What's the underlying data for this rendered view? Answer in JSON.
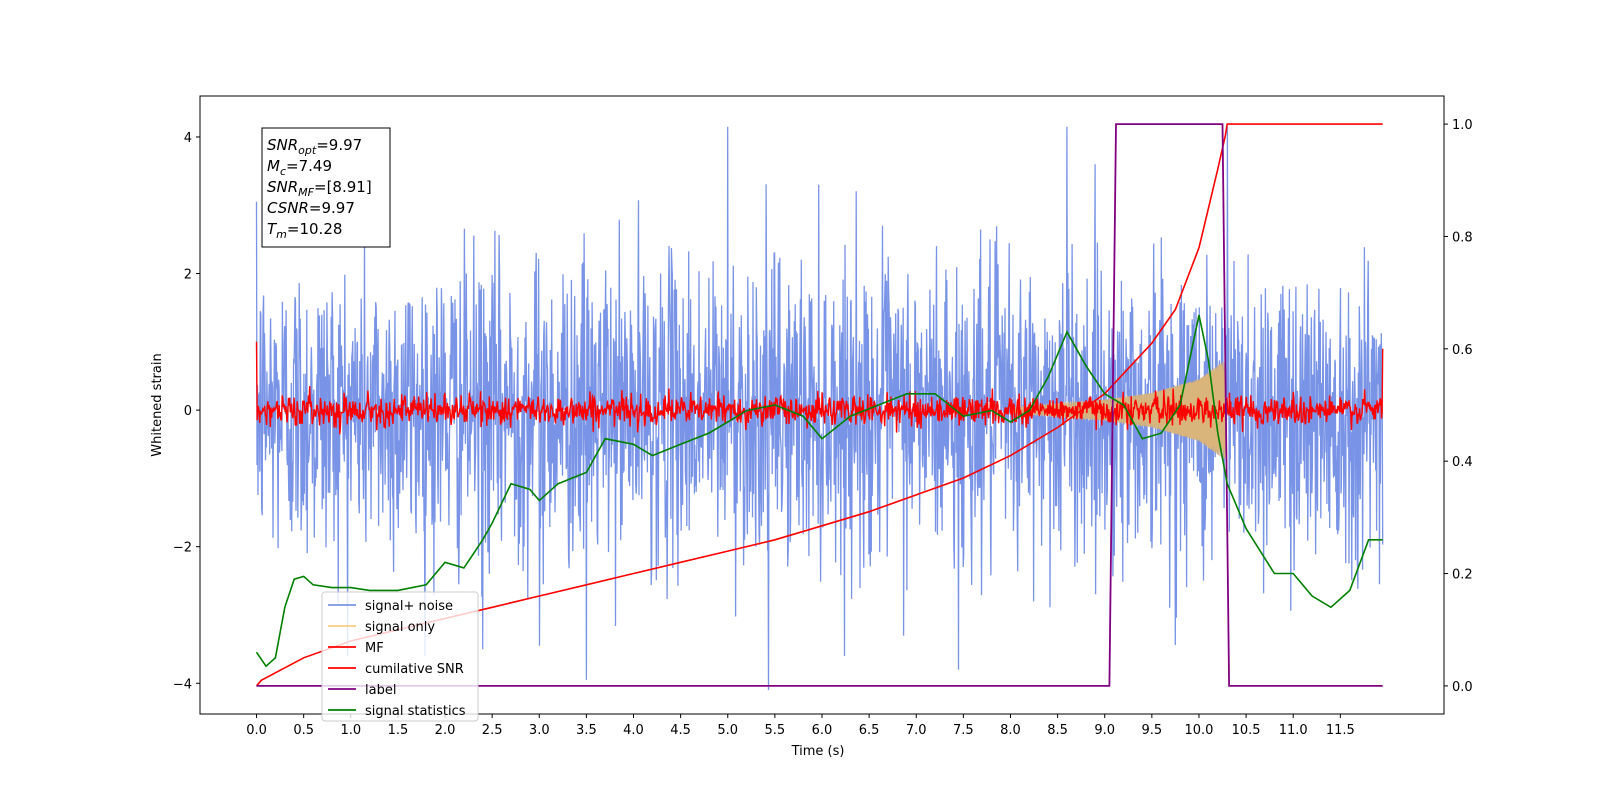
{
  "chart_data": {
    "type": "line",
    "xlabel": "Time (s)",
    "ylabel": "Whitened strain",
    "xlim": [
      -0.6,
      12.6
    ],
    "ylim": [
      -4.45,
      4.6
    ],
    "ylim_right": [
      -0.05,
      1.05
    ],
    "x_ticks": [
      "0.0",
      "0.5",
      "1.0",
      "1.5",
      "2.0",
      "2.5",
      "3.0",
      "3.5",
      "4.0",
      "4.5",
      "5.0",
      "5.5",
      "6.0",
      "6.5",
      "7.0",
      "7.5",
      "8.0",
      "8.5",
      "9.0",
      "9.5",
      "10.0",
      "10.5",
      "11.0",
      "11.5"
    ],
    "y_ticks_left": [
      "4",
      "2",
      "0",
      "−2",
      "−4"
    ],
    "y_ticks_right": [
      "1.0",
      "0.8",
      "0.6",
      "0.4",
      "0.2",
      "0.0"
    ],
    "annotation": [
      {
        "base": "SNR",
        "sub": "opt",
        "value": "=9.97"
      },
      {
        "base": "M",
        "sub": "c",
        "value": "=7.49"
      },
      {
        "base": "SNR",
        "sub": "MF",
        "value": "=[8.91]"
      },
      {
        "base": "CSNR",
        "sub": "",
        "value": "=9.97"
      },
      {
        "base": "T",
        "sub": "m",
        "value": "=10.28"
      }
    ],
    "legend": [
      {
        "label": "signal+ noise",
        "color": "#7994e6"
      },
      {
        "label": "signal only",
        "color": "#f5cf82"
      },
      {
        "label": "MF",
        "color": "#ff0000"
      },
      {
        "label": "cumilative SNR",
        "color": "#ff0000"
      },
      {
        "label": "label",
        "color": "#800080"
      },
      {
        "label": "signal statistics",
        "color": "#008000"
      }
    ],
    "series": [
      {
        "name": "signal+ noise",
        "axis": "left",
        "color": "#7994e6",
        "noise_std": 1.1,
        "peaks": [
          [
            5.43,
            -4.1
          ],
          [
            5.0,
            4.15
          ],
          [
            8.6,
            4.15
          ],
          [
            10.3,
            4.15
          ],
          [
            3.5,
            -3.95
          ],
          [
            7.45,
            -3.8
          ],
          [
            2.4,
            -3.5
          ],
          [
            3.0,
            -3.45
          ]
        ]
      },
      {
        "name": "signal only",
        "axis": "left",
        "color": "#f5cf82",
        "envelope": {
          "x": [
            8.0,
            8.5,
            9.0,
            9.5,
            10.0,
            10.25,
            10.28
          ],
          "y": [
            0.04,
            0.09,
            0.15,
            0.25,
            0.45,
            0.7,
            0.7
          ]
        }
      },
      {
        "name": "MF",
        "axis": "left",
        "color": "#ff0000",
        "noise_std": 0.11,
        "endpoints": {
          "start": 1.0,
          "end": 0.9
        }
      },
      {
        "name": "cumilative SNR",
        "axis": "right",
        "color": "#ff0000",
        "x": [
          0.0,
          0.05,
          0.5,
          1.0,
          1.5,
          2.0,
          2.5,
          3.0,
          3.5,
          4.0,
          4.5,
          5.0,
          5.5,
          6.0,
          6.5,
          7.0,
          7.5,
          8.0,
          8.5,
          9.0,
          9.5,
          9.75,
          10.0,
          10.1,
          10.2,
          10.28,
          10.3,
          11.95
        ],
        "y": [
          0.0,
          0.01,
          0.05,
          0.08,
          0.1,
          0.12,
          0.14,
          0.16,
          0.18,
          0.2,
          0.22,
          0.24,
          0.26,
          0.285,
          0.31,
          0.34,
          0.37,
          0.41,
          0.46,
          0.52,
          0.61,
          0.67,
          0.78,
          0.85,
          0.92,
          0.98,
          1.0,
          1.0
        ]
      },
      {
        "name": "label",
        "axis": "right",
        "color": "#800080",
        "x": [
          0.0,
          9.05,
          9.12,
          10.25,
          10.32,
          11.95
        ],
        "y": [
          0,
          0,
          1,
          1,
          0,
          0
        ]
      },
      {
        "name": "signal statistics",
        "axis": "right",
        "color": "#008000",
        "x": [
          0.0,
          0.1,
          0.2,
          0.3,
          0.4,
          0.5,
          0.6,
          0.8,
          1.0,
          1.2,
          1.5,
          1.8,
          2.0,
          2.2,
          2.4,
          2.5,
          2.7,
          2.9,
          3.0,
          3.2,
          3.5,
          3.7,
          4.0,
          4.2,
          4.5,
          4.8,
          5.0,
          5.2,
          5.5,
          5.8,
          6.0,
          6.3,
          6.6,
          6.9,
          7.2,
          7.5,
          7.8,
          8.0,
          8.2,
          8.4,
          8.6,
          8.8,
          9.0,
          9.2,
          9.4,
          9.6,
          9.8,
          10.0,
          10.1,
          10.2,
          10.3,
          10.5,
          10.8,
          11.0,
          11.2,
          11.4,
          11.6,
          11.8,
          11.95
        ],
        "y": [
          0.06,
          0.035,
          0.05,
          0.14,
          0.19,
          0.195,
          0.18,
          0.175,
          0.175,
          0.17,
          0.17,
          0.18,
          0.22,
          0.21,
          0.26,
          0.29,
          0.36,
          0.35,
          0.33,
          0.36,
          0.38,
          0.44,
          0.43,
          0.41,
          0.43,
          0.45,
          0.47,
          0.49,
          0.5,
          0.48,
          0.44,
          0.48,
          0.5,
          0.52,
          0.52,
          0.48,
          0.49,
          0.47,
          0.49,
          0.55,
          0.63,
          0.57,
          0.52,
          0.5,
          0.44,
          0.45,
          0.5,
          0.66,
          0.58,
          0.45,
          0.36,
          0.28,
          0.2,
          0.2,
          0.16,
          0.14,
          0.17,
          0.26,
          0.26
        ]
      }
    ]
  }
}
